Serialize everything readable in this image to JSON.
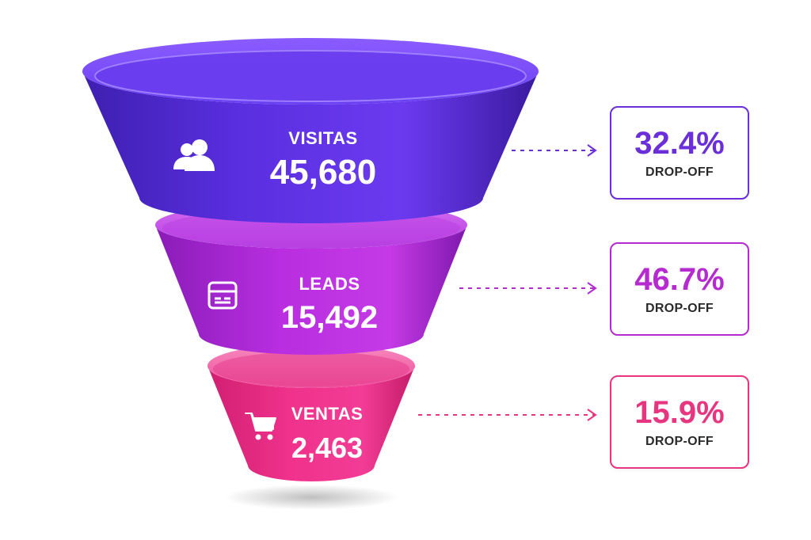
{
  "chart_data": {
    "type": "funnel",
    "stages": [
      {
        "label": "VISITAS",
        "display_value": "45,680",
        "value": 45680,
        "icon": "users-icon",
        "color": "#5b2fd6"
      },
      {
        "label": "LEADS",
        "display_value": "15,492",
        "value": 15492,
        "icon": "form-icon",
        "color": "#b52bd8"
      },
      {
        "label": "VENTAS",
        "display_value": "2,463",
        "value": 2463,
        "icon": "shopping-cart-icon",
        "color": "#ec2f8c"
      }
    ],
    "dropoffs": [
      {
        "percent": "32.4%",
        "caption": "DROP-OFF",
        "color": "#6a2fd8"
      },
      {
        "percent": "46.7%",
        "caption": "DROP-OFF",
        "color": "#b52bd0"
      },
      {
        "percent": "15.9%",
        "caption": "DROP-OFF",
        "color": "#e8357f"
      }
    ]
  }
}
